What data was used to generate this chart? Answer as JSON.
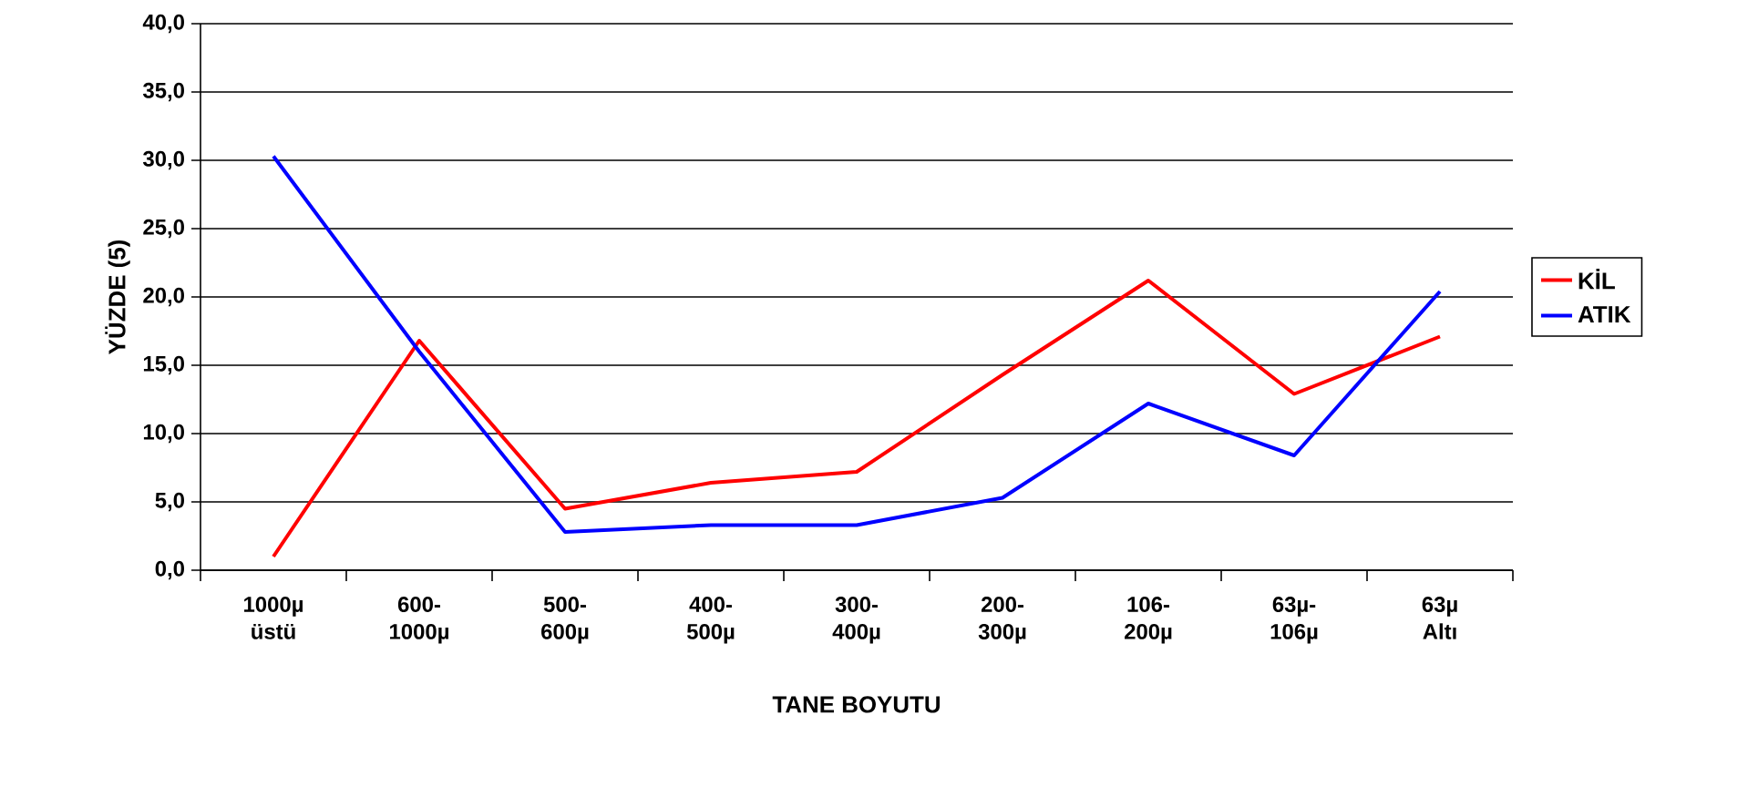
{
  "chart_data": {
    "type": "line",
    "xlabel": "TANE BOYUTU",
    "ylabel": "YÜZDE (5)",
    "categories": [
      "1000µ üstü",
      "600- 1000µ",
      "500- 600µ",
      "400- 500µ",
      "300- 400µ",
      "200- 300µ",
      "106- 200µ",
      "63µ- 106µ",
      "63µ Altı"
    ],
    "series": [
      {
        "name": "KİL",
        "color": "#ff0000",
        "values": [
          1.0,
          16.8,
          4.5,
          6.4,
          7.2,
          14.3,
          21.2,
          12.9,
          17.1
        ]
      },
      {
        "name": "ATIK",
        "color": "#0000ff",
        "values": [
          30.3,
          16.0,
          2.8,
          3.3,
          3.3,
          5.3,
          12.2,
          8.4,
          20.4
        ]
      }
    ],
    "ylim": [
      0,
      40
    ],
    "yticks": [
      {
        "value": 0,
        "label": "0,0"
      },
      {
        "value": 5,
        "label": "5,0"
      },
      {
        "value": 10,
        "label": "10,0"
      },
      {
        "value": 15,
        "label": "15,0"
      },
      {
        "value": 20,
        "label": "20,0"
      },
      {
        "value": 25,
        "label": "25,0"
      },
      {
        "value": 30,
        "label": "30,0"
      },
      {
        "value": 35,
        "label": "35,0"
      },
      {
        "value": 40,
        "label": "40,0"
      }
    ],
    "grid": "y",
    "legend": "right",
    "marker": "none",
    "line_style": "solid"
  }
}
